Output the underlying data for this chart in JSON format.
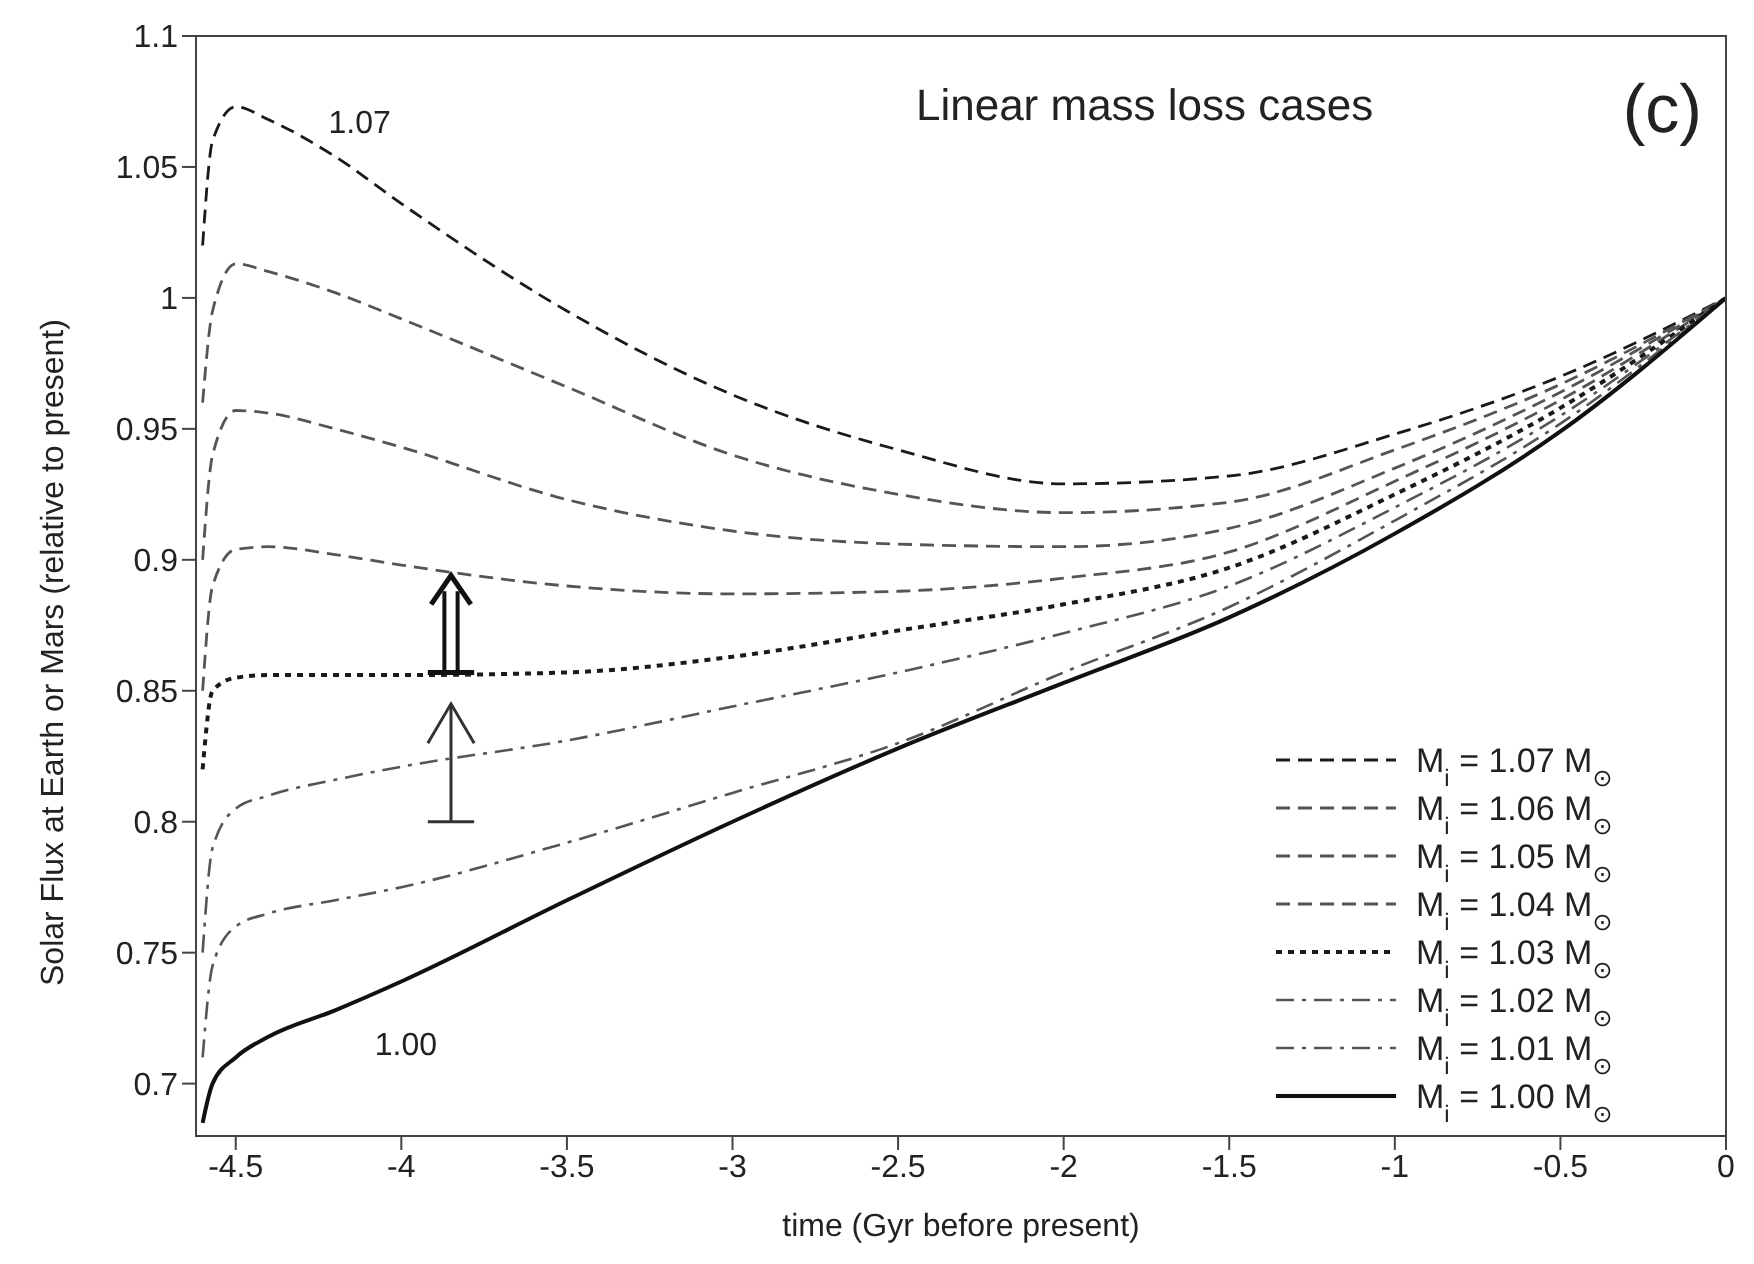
{
  "chart_data": {
    "type": "line",
    "title": "Linear mass loss cases",
    "xlabel": "time   (Gyr before present)",
    "ylabel": "Solar Flux at Earth or Mars (relative to present)",
    "annotations": [
      "(c)",
      "1.07",
      "1.00"
    ],
    "x": [
      -4.6,
      -4.57,
      -4.5,
      -4.4,
      -4.2,
      -4,
      -3.5,
      -3,
      -2.5,
      -2,
      -1.5,
      -1,
      -0.5,
      0
    ],
    "series": [
      {
        "name": "M$_{i}$ = 1.07 M$_{⊙}$",
        "color": "#1a1a1a",
        "line_style": "dashed",
        "values": [
          1.02,
          1.06,
          1.073,
          1.068,
          1.054,
          1.036,
          0.995,
          0.963,
          0.942,
          0.929,
          0.932,
          0.948,
          0.97,
          1.0
        ]
      },
      {
        "name": "M$_{i}$ = 1.06 M$_{⊙}$",
        "color": "#555555",
        "line_style": "dashed",
        "values": [
          0.96,
          0.995,
          1.013,
          1.01,
          1.002,
          0.992,
          0.966,
          0.94,
          0.925,
          0.918,
          0.922,
          0.942,
          0.967,
          1.0
        ]
      },
      {
        "name": "M$_{i}$ = 1.05 M$_{⊙}$",
        "color": "#555555",
        "line_style": "dashed",
        "values": [
          0.9,
          0.94,
          0.957,
          0.956,
          0.95,
          0.943,
          0.923,
          0.911,
          0.906,
          0.905,
          0.912,
          0.935,
          0.964,
          1.0
        ]
      },
      {
        "name": "M$_{i}$ = 1.04 M$_{⊙}$",
        "color": "#555555",
        "line_style": "dashed",
        "values": [
          0.85,
          0.89,
          0.904,
          0.905,
          0.902,
          0.898,
          0.89,
          0.887,
          0.888,
          0.893,
          0.903,
          0.93,
          0.961,
          1.0
        ]
      },
      {
        "name": "M$_{i}$ = 1.03 M$_{⊙}$",
        "color": "#1a1a1a",
        "line_style": "dotted",
        "values": [
          0.82,
          0.85,
          0.855,
          0.856,
          0.856,
          0.856,
          0.857,
          0.863,
          0.873,
          0.883,
          0.897,
          0.925,
          0.958,
          1.0
        ]
      },
      {
        "name": "M$_{i}$ = 1.02 M$_{⊙}$",
        "color": "#555555",
        "line_style": "dashdot",
        "values": [
          0.75,
          0.79,
          0.805,
          0.81,
          0.816,
          0.821,
          0.831,
          0.844,
          0.857,
          0.872,
          0.89,
          0.92,
          0.955,
          1.0
        ]
      },
      {
        "name": "M$_{i}$ = 1.01 M$_{⊙}$",
        "color": "#555555",
        "line_style": "dashdot",
        "values": [
          0.71,
          0.745,
          0.76,
          0.765,
          0.77,
          0.775,
          0.792,
          0.811,
          0.83,
          0.857,
          0.882,
          0.915,
          0.952,
          1.0
        ]
      },
      {
        "name": "M$_{i}$ = 1.00 M$_{⊙}$",
        "color": "#111111",
        "line_style": "solid",
        "values": [
          0.685,
          0.7,
          0.71,
          0.718,
          0.728,
          0.739,
          0.77,
          0.8,
          0.828,
          0.853,
          0.878,
          0.91,
          0.949,
          1.0
        ]
      }
    ],
    "xlim": [
      -4.62,
      0
    ],
    "xticks": [
      -4.5,
      -4,
      -3.5,
      -3,
      -2.5,
      -2,
      -1.5,
      -1,
      -0.5,
      0
    ],
    "ylim": [
      0.68,
      1.1
    ],
    "yticks": [
      0.7,
      0.75,
      0.8,
      0.85,
      0.9,
      0.95,
      1,
      1.05,
      1.1
    ],
    "legend": "bottom right"
  }
}
